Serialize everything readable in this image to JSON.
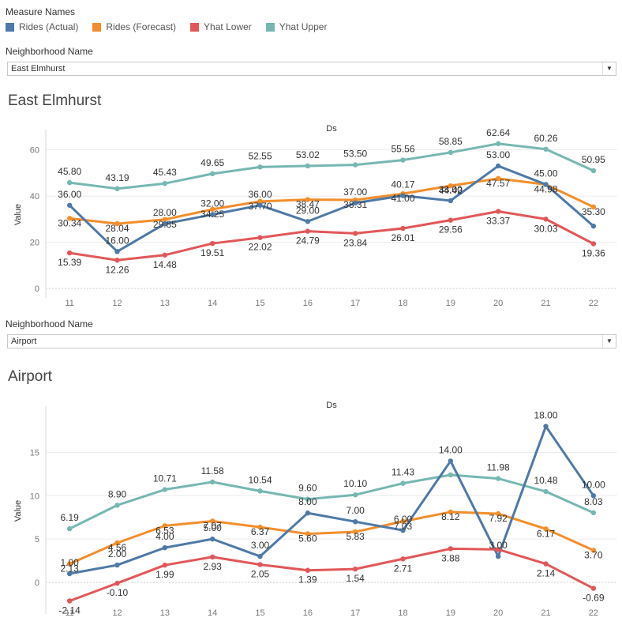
{
  "legend": {
    "title": "Measure Names",
    "items": [
      {
        "label": "Rides (Actual)",
        "color": "#4e79a7"
      },
      {
        "label": "Rides (Forecast)",
        "color": "#f28e2b"
      },
      {
        "label": "Yhat Lower",
        "color": "#e15759"
      },
      {
        "label": "Yhat Upper",
        "color": "#76b7b2"
      }
    ]
  },
  "filters": [
    {
      "label": "Neighborhood Name",
      "value": "East Elmhurst"
    },
    {
      "label": "Neighborhood Name",
      "value": "Airport"
    }
  ],
  "charts": [
    {
      "title": "East Elmhurst"
    },
    {
      "title": "Airport"
    }
  ],
  "chart_data": [
    {
      "type": "line",
      "title": "East Elmhurst",
      "xlabel": "Ds",
      "ylabel": "Value",
      "x": [
        "11",
        "12",
        "13",
        "14",
        "15",
        "16",
        "17",
        "18",
        "19",
        "20",
        "21",
        "22"
      ],
      "ylim": [
        -2,
        66
      ],
      "yticks": [
        "0",
        "20",
        "40",
        "60"
      ],
      "series": [
        {
          "name": "Yhat Upper",
          "color": "#76b7b2",
          "values": [
            45.8,
            43.19,
            45.43,
            49.65,
            52.55,
            53.02,
            53.5,
            55.56,
            58.85,
            62.64,
            60.26,
            50.95
          ],
          "labels": [
            "45.80",
            "43.19",
            "45.43",
            "49.65",
            "52.55",
            "53.02",
            "53.50",
            "55.56",
            "58.85",
            "62.64",
            "60.26",
            "50.95"
          ]
        },
        {
          "name": "Rides (Forecast)",
          "color": "#f28e2b",
          "values": [
            30.34,
            28.04,
            29.85,
            34.25,
            37.7,
            38.47,
            38.31,
            41.0,
            44.42,
            47.57,
            44.98,
            35.3
          ],
          "labels": [
            "30.34",
            "28.04",
            "29.85",
            "34.25",
            "37.70",
            "38.47",
            "38.31",
            "41.00",
            "44.42",
            "47.57",
            "44.98",
            "35.30"
          ]
        },
        {
          "name": "Rides (Actual)",
          "color": "#4e79a7",
          "values": [
            36.0,
            16.0,
            28.0,
            32.0,
            36.0,
            29.0,
            37.0,
            40.17,
            38.0,
            53.0,
            45.0,
            27.0
          ],
          "labels": [
            "36.00",
            "16.00",
            "28.00",
            "32.00",
            "36.00",
            "29.00",
            "37.00",
            "40.17",
            "38.00",
            "53.00",
            "45.00",
            ""
          ]
        },
        {
          "name": "Yhat Lower",
          "color": "#e15759",
          "values": [
            15.39,
            12.26,
            14.48,
            19.51,
            22.02,
            24.79,
            23.84,
            26.01,
            29.56,
            33.37,
            30.03,
            19.36
          ],
          "labels": [
            "15.39",
            "12.26",
            "14.48",
            "19.51",
            "22.02",
            "24.79",
            "23.84",
            "26.01",
            "29.56",
            "33.37",
            "30.03",
            "19.36"
          ]
        }
      ]
    },
    {
      "type": "line",
      "title": "Airport",
      "xlabel": "Ds",
      "ylabel": "Value",
      "x": [
        "11",
        "12",
        "13",
        "14",
        "15",
        "16",
        "17",
        "18",
        "19",
        "20",
        "21",
        "22"
      ],
      "ylim": [
        -3.1,
        19.6
      ],
      "yticks": [
        "0",
        "5",
        "10",
        "15"
      ],
      "series": [
        {
          "name": "Yhat Upper",
          "color": "#76b7b2",
          "values": [
            6.19,
            8.9,
            10.71,
            11.58,
            10.54,
            9.6,
            10.1,
            11.43,
            12.4,
            11.98,
            10.48,
            8.03
          ],
          "labels": [
            "6.19",
            "8.90",
            "10.71",
            "11.58",
            "10.54",
            "9.60",
            "10.10",
            "11.43",
            "",
            "11.98",
            "10.48",
            "8.03"
          ]
        },
        {
          "name": "Rides (Forecast)",
          "color": "#f28e2b",
          "values": [
            2.13,
            4.56,
            6.53,
            7.07,
            6.37,
            5.6,
            5.83,
            7.03,
            8.12,
            7.92,
            6.17,
            3.7
          ],
          "labels": [
            "2.13",
            "4.56",
            "6.53",
            "7.07",
            "6.37",
            "5.60",
            "5.83",
            "7.03",
            "8.12",
            "7.92",
            "6.17",
            "3.70"
          ]
        },
        {
          "name": "Rides (Actual)",
          "color": "#4e79a7",
          "values": [
            1.0,
            2.0,
            4.0,
            5.0,
            3.0,
            8.0,
            7.0,
            6.0,
            14.0,
            3.0,
            18.0,
            10.0
          ],
          "labels": [
            "1.00",
            "2.00",
            "4.00",
            "5.00",
            "3.00",
            "8.00",
            "7.00",
            "6.00",
            "14.00",
            "3.00",
            "18.00",
            "10.00"
          ]
        },
        {
          "name": "Yhat Lower",
          "color": "#e15759",
          "values": [
            -2.14,
            -0.1,
            1.99,
            2.93,
            2.05,
            1.39,
            1.54,
            2.71,
            3.88,
            3.8,
            2.14,
            -0.69
          ],
          "labels": [
            "-2.14",
            "-0.10",
            "1.99",
            "2.93",
            "2.05",
            "1.39",
            "1.54",
            "2.71",
            "3.88",
            "",
            "2.14",
            "-0.69"
          ]
        }
      ]
    }
  ]
}
